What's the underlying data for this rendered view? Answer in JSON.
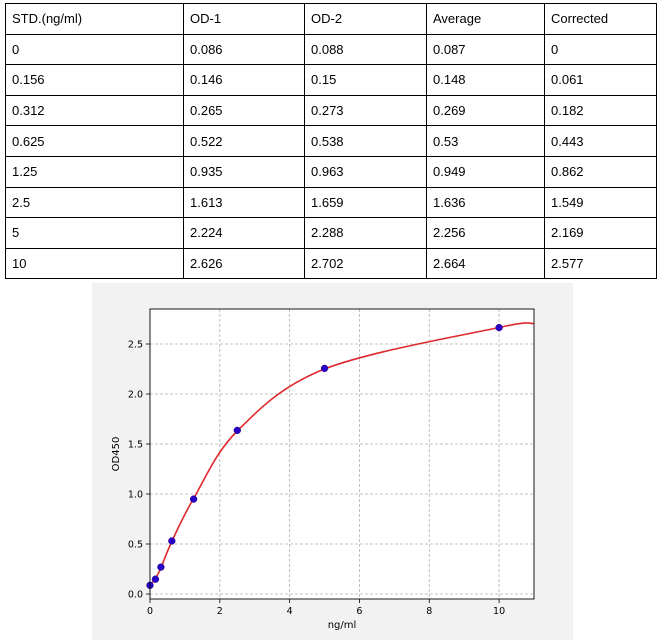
{
  "table": {
    "headers": [
      "STD.(ng/ml)",
      "OD-1",
      "OD-2",
      "Average",
      "Corrected"
    ],
    "rows": [
      [
        "0",
        "0.086",
        "0.088",
        "0.087",
        "0"
      ],
      [
        "0.156",
        "0.146",
        "0.15",
        "0.148",
        "0.061"
      ],
      [
        "0.312",
        "0.265",
        "0.273",
        "0.269",
        "0.182"
      ],
      [
        "0.625",
        "0.522",
        "0.538",
        "0.53",
        "0.443"
      ],
      [
        "1.25",
        "0.935",
        "0.963",
        "0.949",
        "0.862"
      ],
      [
        "2.5",
        "1.613",
        "1.659",
        "1.636",
        "1.549"
      ],
      [
        "5",
        "2.224",
        "2.288",
        "2.256",
        "2.169"
      ],
      [
        "10",
        "2.626",
        "2.702",
        "2.664",
        "2.577"
      ]
    ]
  },
  "chart_data": {
    "type": "scatter",
    "title": "",
    "xlabel": "ng/ml",
    "ylabel": "OD450",
    "xlim": [
      0,
      11
    ],
    "ylim": [
      -0.05,
      2.85
    ],
    "xticks": [
      0,
      2,
      4,
      6,
      8,
      10
    ],
    "yticks": [
      0.0,
      0.5,
      1.0,
      1.5,
      2.0,
      2.5
    ],
    "grid": true,
    "series": [
      {
        "kind": "points",
        "color": "#2a00c8",
        "x": [
          0,
          0.156,
          0.312,
          0.625,
          1.25,
          2.5,
          5,
          10
        ],
        "y": [
          0.087,
          0.148,
          0.269,
          0.53,
          0.949,
          1.636,
          2.256,
          2.664
        ]
      },
      {
        "kind": "fit-curve",
        "color": "#e0282d",
        "x": [
          0,
          0.156,
          0.312,
          0.625,
          1.25,
          2.5,
          5,
          10,
          11
        ],
        "y": [
          0.083,
          0.155,
          0.262,
          0.525,
          0.955,
          1.63,
          2.25,
          2.665,
          2.705
        ]
      }
    ]
  }
}
